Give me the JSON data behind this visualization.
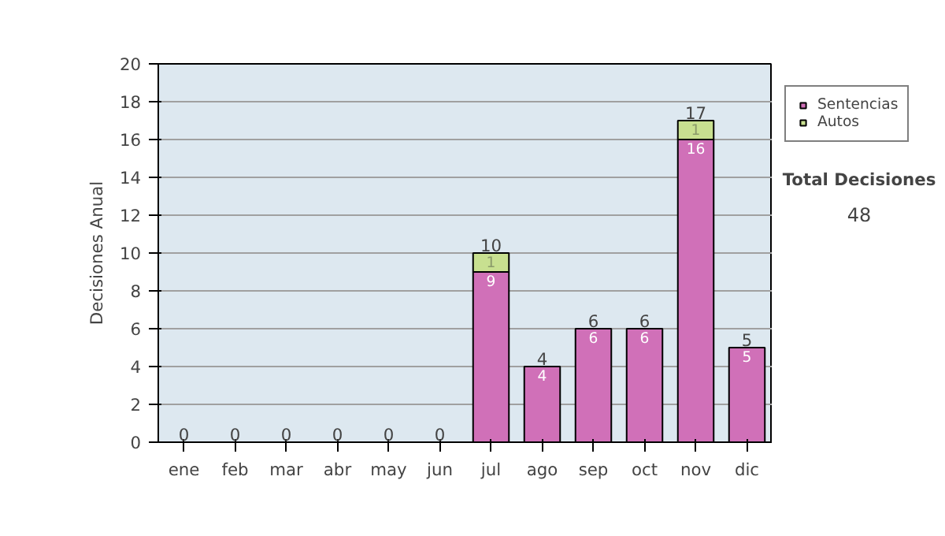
{
  "chart_data": {
    "type": "bar",
    "stacked": true,
    "ylabel": "Decisiones Anual",
    "categories": [
      "ene",
      "feb",
      "mar",
      "abr",
      "may",
      "jun",
      "jul",
      "ago",
      "sep",
      "oct",
      "nov",
      "dic"
    ],
    "series": [
      {
        "name": "Sentencias",
        "color": "#d070b8",
        "values": [
          0,
          0,
          0,
          0,
          0,
          0,
          9,
          4,
          6,
          6,
          16,
          5
        ],
        "value_labels": [
          null,
          null,
          null,
          null,
          null,
          null,
          "9",
          "4",
          "6",
          "6",
          "16",
          "5"
        ]
      },
      {
        "name": "Autos",
        "color": "#c8e090",
        "values": [
          0,
          0,
          0,
          0,
          0,
          0,
          1,
          0,
          0,
          0,
          1,
          0
        ],
        "value_labels": [
          null,
          null,
          null,
          null,
          null,
          null,
          "1",
          null,
          null,
          null,
          "1",
          null
        ]
      }
    ],
    "totals": [
      "0",
      "0",
      "0",
      "0",
      "0",
      "0",
      "10",
      "4",
      "6",
      "6",
      "17",
      "5"
    ],
    "ylim": [
      0,
      20
    ],
    "yticks": [
      0,
      2,
      4,
      6,
      8,
      10,
      12,
      14,
      16,
      18,
      20
    ],
    "grid": "y",
    "legend": "right",
    "annotations": [
      "Total Decisiones",
      "48"
    ]
  }
}
